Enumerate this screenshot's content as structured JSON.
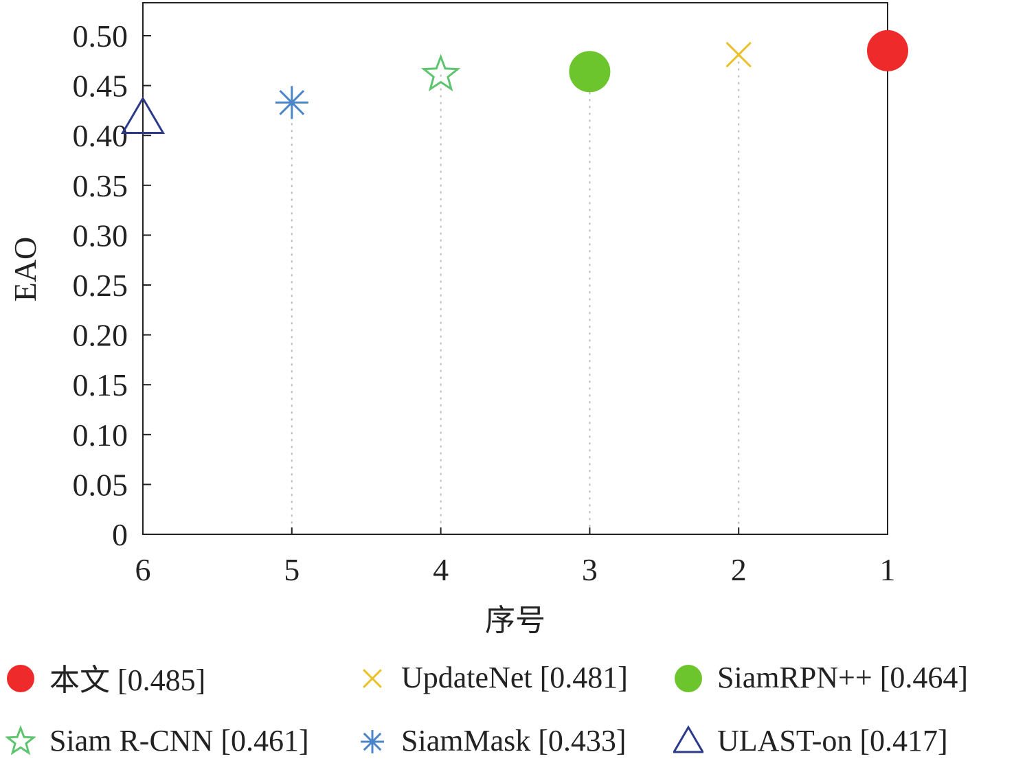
{
  "chart_data": {
    "type": "scatter",
    "title": "",
    "xlabel": "序号",
    "ylabel": "EAO",
    "x_ticks": [
      "6",
      "5",
      "4",
      "3",
      "2",
      "1"
    ],
    "x_order": [
      6,
      5,
      4,
      3,
      2,
      1
    ],
    "ylim": [
      0,
      0.5
    ],
    "y_ticks": [
      "0",
      "0.05",
      "0.10",
      "0.15",
      "0.20",
      "0.25",
      "0.30",
      "0.35",
      "0.40",
      "0.45",
      "0.50"
    ],
    "grid": "vertical dotted drop-lines per point",
    "legend_placement": "bottom",
    "series": [
      {
        "name": "本文",
        "x": 1,
        "y": 0.485,
        "marker": "filled-circle",
        "color": "#ee2a2a"
      },
      {
        "name": "UpdateNet",
        "x": 2,
        "y": 0.481,
        "marker": "x",
        "color": "#e8c228"
      },
      {
        "name": "SiamRPN++",
        "x": 3,
        "y": 0.464,
        "marker": "filled-circle",
        "color": "#6cc52d"
      },
      {
        "name": "Siam R-CNN",
        "x": 4,
        "y": 0.461,
        "marker": "star",
        "color": "#5ec46e"
      },
      {
        "name": "SiamMask",
        "x": 5,
        "y": 0.433,
        "marker": "asterisk",
        "color": "#4a86c8"
      },
      {
        "name": "ULAST-on",
        "x": 6,
        "y": 0.417,
        "marker": "triangle",
        "color": "#2d3a8c"
      }
    ]
  },
  "legend": {
    "items": [
      {
        "marker": "filled-circle",
        "color": "#ee2a2a",
        "label": "本文 [0.485]"
      },
      {
        "marker": "x",
        "color": "#e8c228",
        "label": "UpdateNet [0.481]"
      },
      {
        "marker": "filled-circle",
        "color": "#6cc52d",
        "label": "SiamRPN++ [0.464]"
      },
      {
        "marker": "star",
        "color": "#5ec46e",
        "label": "Siam R-CNN [0.461]"
      },
      {
        "marker": "asterisk",
        "color": "#4a86c8",
        "label": "SiamMask [0.433]"
      },
      {
        "marker": "triangle",
        "color": "#2d3a8c",
        "label": "ULAST-on [0.417]"
      }
    ]
  }
}
